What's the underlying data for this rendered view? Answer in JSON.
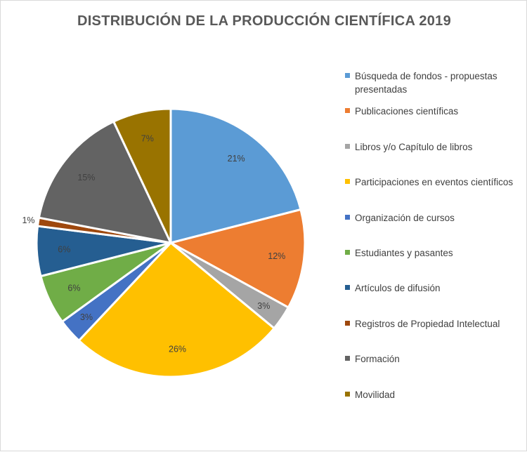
{
  "chart_data": {
    "type": "pie",
    "title": "DISTRIBUCIÓN DE LA PRODUCCIÓN CIENTÍFICA 2019",
    "legend_position": "right",
    "slices": [
      {
        "name": "Búsqueda de fondos - propuestas presentadas",
        "value": 21,
        "label": "21%",
        "color": "#5b9bd5"
      },
      {
        "name": "Publicaciones científicas",
        "value": 12,
        "label": "12%",
        "color": "#ed7d31"
      },
      {
        "name": "Libros y/o Capítulo de libros",
        "value": 3,
        "label": "3%",
        "color": "#a5a5a5"
      },
      {
        "name": "Participaciones en eventos científicos",
        "value": 26,
        "label": "26%",
        "color": "#ffc000"
      },
      {
        "name": "Organización de cursos",
        "value": 3,
        "label": "3%",
        "color": "#4472c4"
      },
      {
        "name": "Estudiantes y pasantes",
        "value": 6,
        "label": "6%",
        "color": "#70ad47"
      },
      {
        "name": "Artículos de difusión",
        "value": 6,
        "label": "6%",
        "color": "#255e91"
      },
      {
        "name": "Registros de Propiedad Intelectual",
        "value": 1,
        "label": "1%",
        "color": "#9e480e"
      },
      {
        "name": "Formación",
        "value": 15,
        "label": "15%",
        "color": "#636363"
      },
      {
        "name": "Movilidad",
        "value": 7,
        "label": "7%",
        "color": "#997300"
      }
    ]
  }
}
